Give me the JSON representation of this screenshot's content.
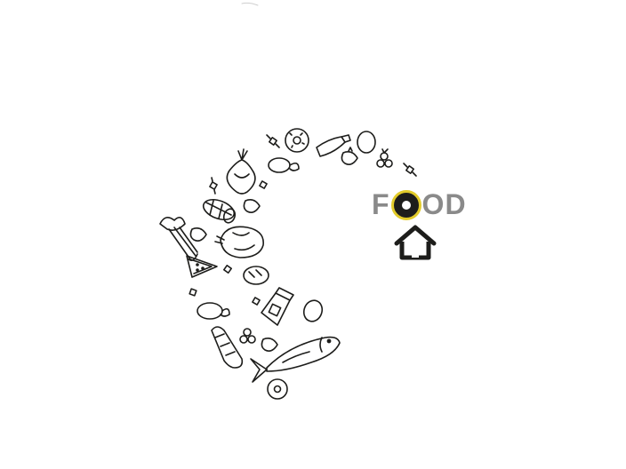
{
  "logo": {
    "letters": [
      "F",
      "O",
      "O",
      "D"
    ],
    "accent_color": "#e2cb2a",
    "text_color": "#8a8a8a",
    "icon": "house-icon"
  },
  "illustration": {
    "style": "line-art",
    "items": [
      "celery-icon",
      "watermelon-slice-icon",
      "roast-chicken-icon",
      "sausage-icon",
      "onion-icon",
      "lemon-icon",
      "donut-icon",
      "bottle-icon",
      "egg-icon",
      "strawberry-icon",
      "blueberries-icon",
      "candy-icon",
      "bread-icon",
      "milk-carton-icon",
      "fish-icon",
      "salami-icon"
    ]
  }
}
